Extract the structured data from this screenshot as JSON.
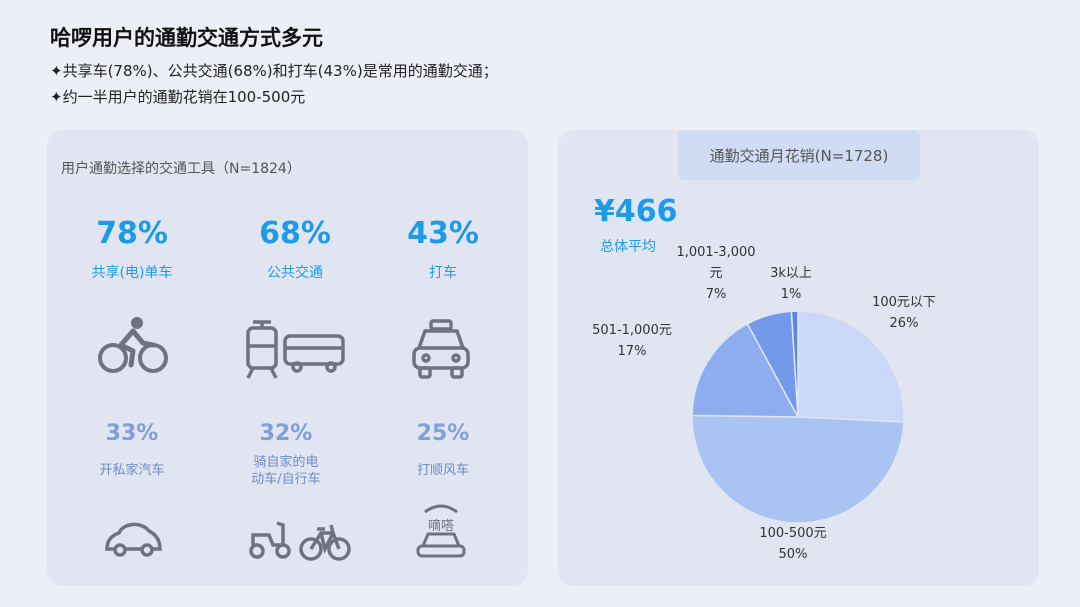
{
  "header": {
    "title": "哈啰用户的通勤交通方式多元",
    "bullets": [
      "✦共享车(78%)、公共交通(68%)和打车(43%)是常用的通勤交通；",
      "✦约一半用户的通勤花销在100-500元"
    ]
  },
  "left_panel": {
    "title": "用户通勤选择的交通工具（N=1824）",
    "top_row": [
      {
        "pct": "78%",
        "label": "共享(电)单车",
        "icon": "bicycle-rider-icon"
      },
      {
        "pct": "68%",
        "label": "公共交通",
        "icon": "tram-bus-icon"
      },
      {
        "pct": "43%",
        "label": "打车",
        "icon": "taxi-icon"
      }
    ],
    "bottom_row": [
      {
        "pct": "33%",
        "label": "开私家汽车",
        "icon": "car-icon"
      },
      {
        "pct": "32%",
        "label": "骑自家的电动车/自行车",
        "icon": "scooter-bicycle-icon"
      },
      {
        "pct": "25%",
        "label": "打顺风车",
        "icon": "carpool-didi-car-icon",
        "icon_text": "嘀嗒"
      }
    ]
  },
  "right_panel": {
    "tag": "通勤交通月花销(N=1728)",
    "avg_value": "¥466",
    "avg_label": "总体平均"
  },
  "chart_data": {
    "type": "pie",
    "title": "通勤交通月花销(N=1728)",
    "slices": [
      {
        "label": "100元以下",
        "value": 26,
        "display": "26%",
        "color": "#c9d8f8"
      },
      {
        "label": "100-500元",
        "value": 50,
        "display": "50%",
        "color": "#a9c3f3"
      },
      {
        "label": "501-1,000元",
        "value": 17,
        "display": "17%",
        "color": "#8eadf0"
      },
      {
        "label": "1,001-3,000元",
        "value": 7,
        "display": "7%",
        "color": "#7399ea"
      },
      {
        "label": "3k以上",
        "value": 1,
        "display": "1%",
        "color": "#5c86e2"
      }
    ],
    "label_lines": [
      [
        "100元以下",
        "26%"
      ],
      [
        "100-500元",
        "50%"
      ],
      [
        "501-1,000元",
        "17%"
      ],
      [
        "1,001-3,000",
        "元",
        "7%"
      ],
      [
        "3k以上",
        "1%"
      ]
    ]
  },
  "colors": {
    "accent": "#1d9be6",
    "secondary": "#7f9fd9",
    "icon": "#6f7280",
    "panel_bg": "#e1e5f1",
    "page_bg": "#eceff8"
  }
}
